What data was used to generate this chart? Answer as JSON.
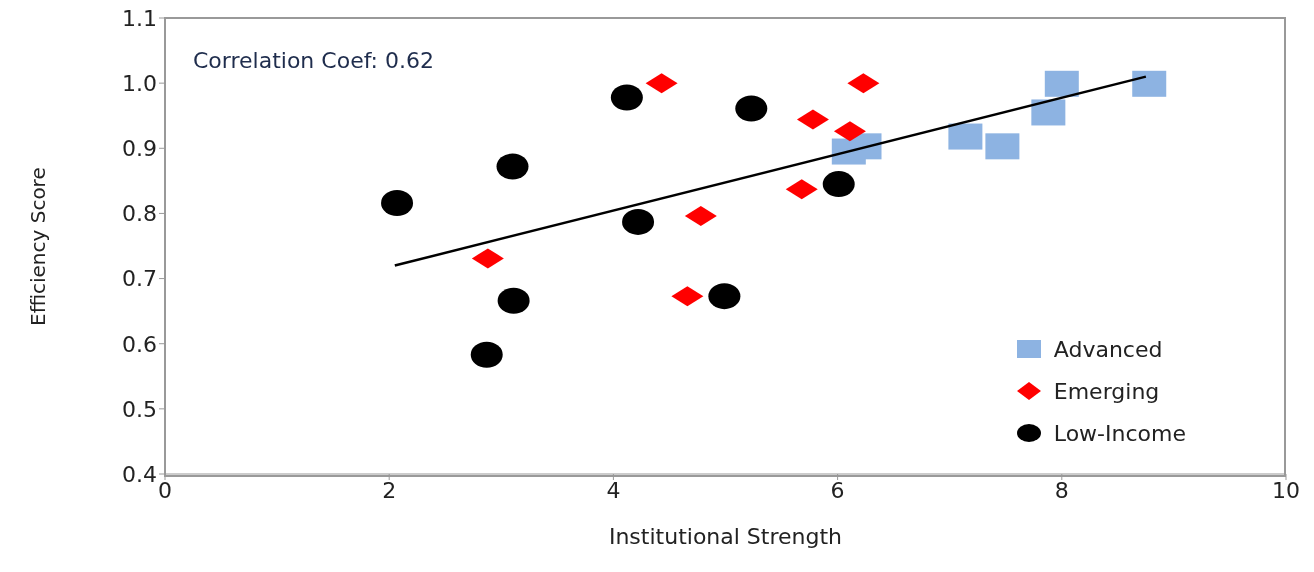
{
  "chart_data": {
    "type": "scatter",
    "xlabel": "Institutional Strength",
    "ylabel": "Efficiency Score",
    "annotations": [
      "Correlation Coef: 0.62"
    ],
    "xlim": [
      0,
      10
    ],
    "xticks": [
      0,
      2,
      4,
      6,
      8,
      10
    ],
    "ylim": [
      0.4,
      1.1
    ],
    "yticks": [
      {
        "value": 0.4,
        "label": "0.4"
      },
      {
        "value": 0.5,
        "label": "0.5"
      },
      {
        "value": 0.6,
        "label": "0.6"
      },
      {
        "value": 0.7,
        "label": "0.7"
      },
      {
        "value": 0.8,
        "label": "0.8"
      },
      {
        "value": 0.9,
        "label": "0.9"
      },
      {
        "value": 1.0,
        "label": "1.0"
      },
      {
        "value": 1.1,
        "label": "1.1"
      }
    ],
    "grid": false,
    "legend": "bottom right",
    "series": [
      {
        "name": "Advanced",
        "color": "#8db3e2",
        "marker": "square",
        "x": [
          6.1,
          6.24,
          7.14,
          7.47,
          7.88,
          8.0,
          8.78
        ],
        "values": [
          0.895,
          0.903,
          0.918,
          0.903,
          0.955,
          0.999,
          0.999
        ]
      },
      {
        "name": "Emerging",
        "color": "#ff0000",
        "marker": "diamond",
        "x": [
          4.43,
          6.23,
          5.78,
          6.11,
          5.68,
          4.78,
          2.88,
          4.66
        ],
        "values": [
          1.0,
          1.0,
          0.944,
          0.926,
          0.837,
          0.796,
          0.731,
          0.673
        ]
      },
      {
        "name": "Low-Income",
        "color": "#000000",
        "marker": "circle",
        "x": [
          2.07,
          3.1,
          4.12,
          5.23,
          4.22,
          3.11,
          2.87,
          4.99,
          6.01
        ],
        "values": [
          0.816,
          0.872,
          0.978,
          0.961,
          0.787,
          0.666,
          0.583,
          0.673,
          0.845
        ]
      },
      {
        "type": "line",
        "color": "#000000",
        "marker": "none",
        "line_style": "solid",
        "x": [
          2.05,
          8.75
        ],
        "values": [
          0.72,
          1.01
        ]
      }
    ]
  }
}
